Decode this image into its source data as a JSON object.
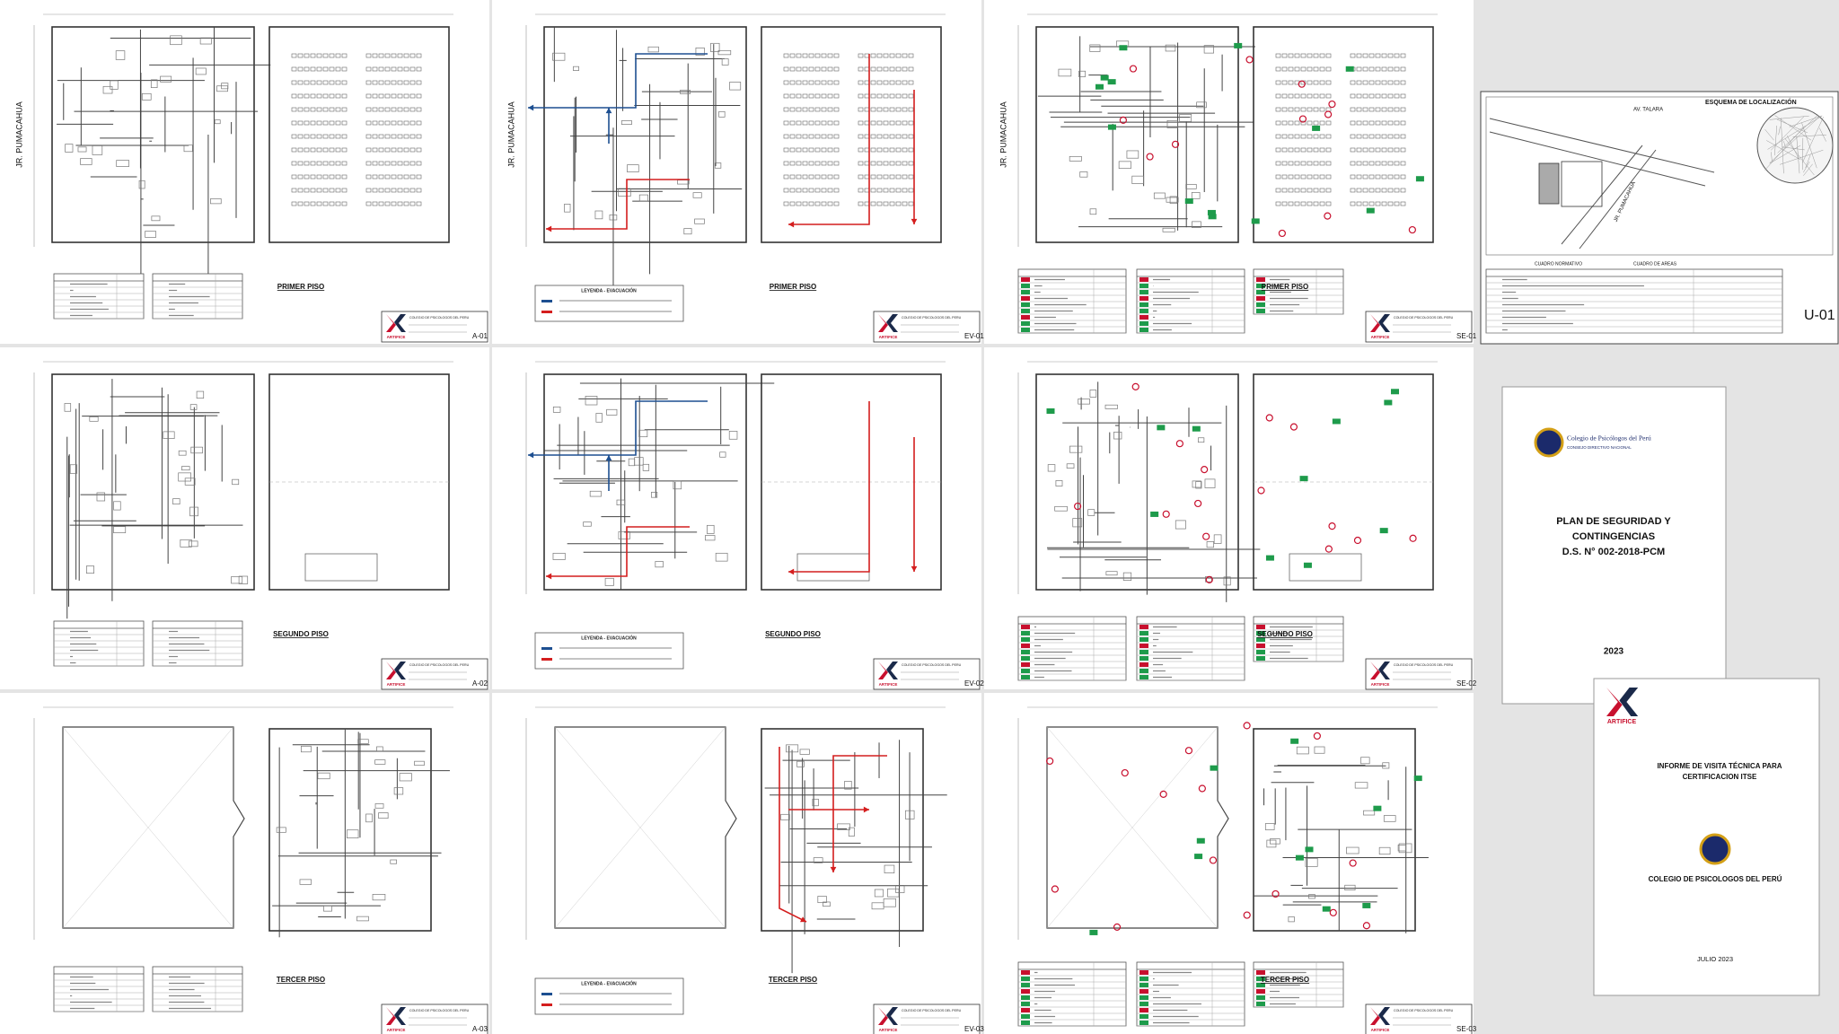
{
  "sheets": [
    {
      "code": "A-01",
      "title": "PRIMER PISO",
      "street": "JR. PUMACAHUA",
      "brand": "ARTIFICE",
      "client": "COLEGIO DE PSICOLOGOS DEL PERU"
    },
    {
      "code": "EV-01",
      "title": "PRIMER PISO",
      "street": "JR. PUMACAHUA",
      "legend": "LEYENDA - EVACUACIÓN",
      "brand": "ARTIFICE",
      "client": "COLEGIO DE PSICOLOGOS DEL PERU"
    },
    {
      "code": "SE-01",
      "title": "PRIMER PISO",
      "street": "JR. PUMACAHUA",
      "brand": "ARTIFICE",
      "client": "COLEGIO DE PSICOLOGOS DEL PERU"
    },
    {
      "code": "A-02",
      "title": "SEGUNDO PISO",
      "brand": "ARTIFICE",
      "client": "COLEGIO DE PSICOLOGOS DEL PERU"
    },
    {
      "code": "EV-02",
      "title": "SEGUNDO PISO",
      "legend": "LEYENDA - EVACUACIÓN",
      "brand": "ARTIFICE",
      "client": "COLEGIO DE PSICOLOGOS DEL PERU"
    },
    {
      "code": "SE-02",
      "title": "SEGUNDO PISO",
      "brand": "ARTIFICE",
      "client": "COLEGIO DE PSICOLOGOS DEL PERU"
    },
    {
      "code": "A-03",
      "title": "TERCER PISO",
      "brand": "ARTIFICE",
      "client": "COLEGIO DE PSICOLOGOS DEL PERU"
    },
    {
      "code": "EV-03",
      "title": "TERCER PISO",
      "legend": "LEYENDA - EVACUACIÓN",
      "brand": "ARTIFICE",
      "client": "COLEGIO DE PSICOLOGOS DEL PERU"
    },
    {
      "code": "SE-03",
      "title": "TERCER PISO",
      "brand": "ARTIFICE",
      "client": "COLEGIO DE PSICOLOGOS DEL PERU"
    }
  ],
  "location_sheet": {
    "code": "U-01",
    "heading": "ESQUEMA DE LOCALIZACIÓN",
    "avenue": "AV. TALARA",
    "street": "JR. PUMACAHUA",
    "table_1": "CUADRO NORMATIVO",
    "table_2": "CUADRO DE AREAS"
  },
  "cover_plan": {
    "logo_name": "Colegio de Psicólogos del Perú",
    "logo_sub": "CONSEJO DIRECTIVO NACIONAL",
    "title_lines": [
      "PLAN DE SEGURIDAD Y",
      "CONTINGENCIAS",
      "D.S. N° 002-2018-PCM"
    ],
    "year": "2023"
  },
  "cover_report": {
    "brand": "ARTIFICE",
    "title_lines": [
      "INFORME DE VISITA TÉCNICA PARA",
      "CERTIFICACION ITSE"
    ],
    "client": "COLEGIO DE PSICOLOGOS DEL PERÚ",
    "date": "JULIO 2023"
  }
}
